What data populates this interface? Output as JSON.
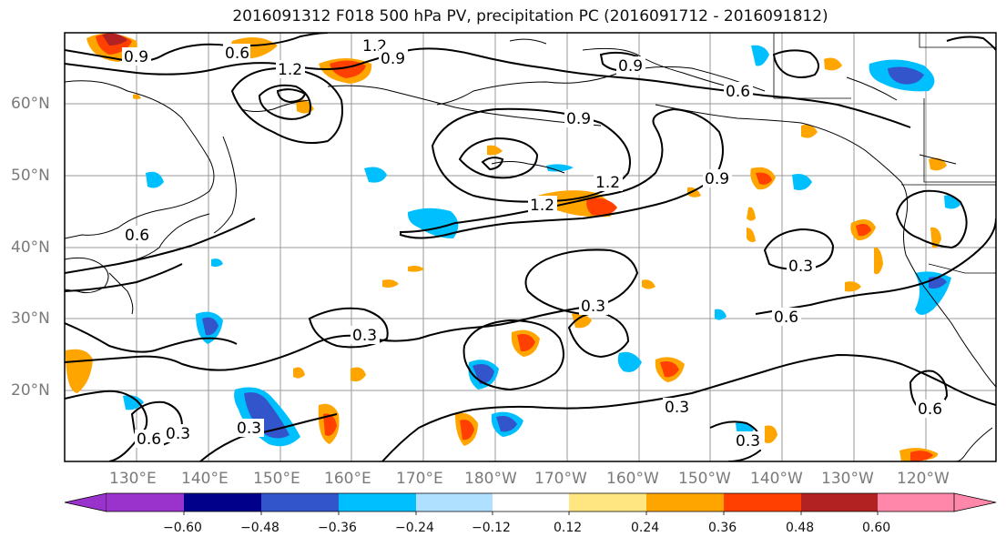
{
  "title": "2016091312 F018 500 hPa PV, precipitation PC (2016091712 - 2016091812)",
  "lat_labels": [
    "60°N",
    "50°N",
    "40°N",
    "30°N",
    "20°N"
  ],
  "lon_labels": [
    "130°E",
    "140°E",
    "150°E",
    "160°E",
    "170°E",
    "180°W",
    "170°W",
    "160°W",
    "150°W",
    "140°W",
    "130°W",
    "120°W"
  ],
  "contour_labels": [
    "1.2",
    "0.9",
    "0.6",
    "1.2",
    "0.9",
    "0.6",
    "0.9",
    "1.2",
    "1.2",
    "0.9",
    "0.9",
    "0.6",
    "0.3",
    "0.3",
    "0.6",
    "0.3",
    "0.3",
    "0.3",
    "0.3",
    "0.6",
    "0.6",
    "0.3"
  ],
  "colorbar": {
    "colors": [
      "#9933cc",
      "#00008b",
      "#3355cc",
      "#00bfff",
      "#b0e0ff",
      "#ffffff",
      "#ffe680",
      "#ffa500",
      "#ff4000",
      "#b22222",
      "#ff88aa"
    ],
    "tick_labels": [
      "−0.60",
      "−0.48",
      "−0.36",
      "−0.24",
      "−0.12",
      "0.12",
      "0.24",
      "0.36",
      "0.48",
      "0.60"
    ]
  }
}
